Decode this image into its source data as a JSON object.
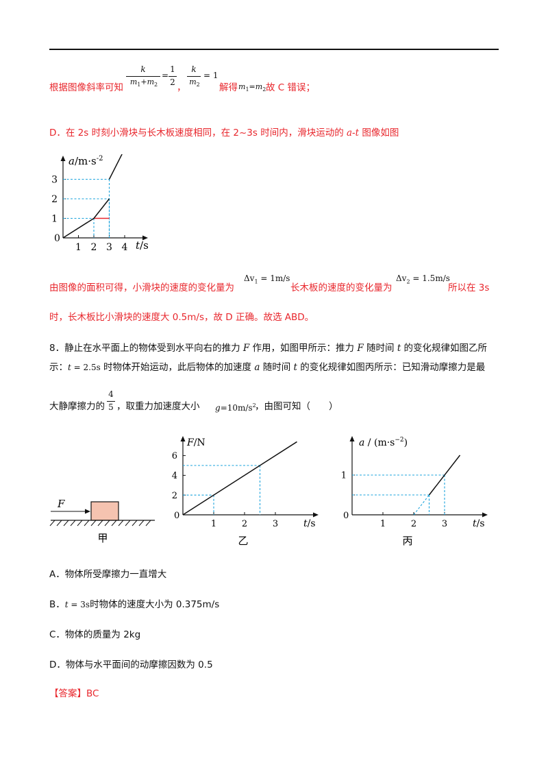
{
  "solution": {
    "line1": {
      "prefix": "根据图像斜率可知",
      "f1_num": "k",
      "f1_den_a": "m",
      "f1_den_a_sub": "1",
      "f1_plus": "+",
      "f1_den_b": "m",
      "f1_den_b_sub": "2",
      "eq1": "=",
      "half_num": "1",
      "half_den": "2",
      "comma": "，",
      "f2_num": "k",
      "f2_den": "m",
      "f2_den_sub": "2",
      "eq2": "= 1",
      "solve": "解得",
      "m1": "m",
      "m1_sub": "1",
      "eq3": "=",
      "m2": "m",
      "m2_sub": "2",
      "conclusion": "故 C 错误；"
    },
    "lineD": {
      "part1": "D．在 2s 时刻小滑块与长木板速度相同，在 2~3s 时间内，滑块运动的 ",
      "italic": "a-t",
      "part2": " 图像如图"
    },
    "area_line": {
      "part1": "由图像的面积可得，小滑块的速度的变化量为",
      "dv1_prefix": "Δv",
      "dv1_sub": "1",
      "dv1_value": " = 1m/s",
      "part2": "长木板的速度的变化量为",
      "dv2_prefix": "Δv",
      "dv2_sub": "2",
      "dv2_value": " = 1.5m/s",
      "part3": "所以在 3s"
    },
    "last_line": "时，长木板比小滑块的速度大 0.5m/s，故 D 正确。故选 ABD。"
  },
  "solution_chart": {
    "chart_data": {
      "type": "line",
      "ylabel_var": "a",
      "ylabel_unit": "/m·s",
      "ylabel_exp": "-2",
      "xlabel_var": "t",
      "xlabel_unit": "/s",
      "origin": "0",
      "x_ticks": [
        "1",
        "2",
        "3",
        "4"
      ],
      "y_ticks": [
        "1",
        "2",
        "3"
      ],
      "xlim": [
        0,
        4.5
      ],
      "ylim": [
        0,
        4.4
      ],
      "series": [
        {
          "values": [
            [
              0,
              0
            ],
            [
              2,
              1
            ],
            [
              3,
              2
            ]
          ]
        },
        {
          "values": [
            [
              3,
              3
            ],
            [
              3.9,
              4.4
            ]
          ]
        }
      ],
      "red_segment": [
        [
          2,
          1
        ],
        [
          3,
          1
        ]
      ],
      "guides": [
        [
          2,
          1
        ],
        [
          3,
          2
        ],
        [
          3,
          3
        ]
      ]
    }
  },
  "question": {
    "line1_a": "8．静止在水平面上的物体受到水平向右的推力 ",
    "F1": "F",
    "line1_b": " 作用，如图甲所示：推力 ",
    "F2": "F",
    "line1_c": " 随时间 ",
    "t1": "t",
    "line1_d": " 的变化规律如图乙所",
    "line2_a": "示：",
    "t_eq": "t",
    "t_val": " = 2.5s",
    "line2_b": " 时物体开始运动，此后物体的加速度 ",
    "a1": "a",
    "line2_c": " 随时间 ",
    "t2": "t",
    "line2_d": " 的变化规律如图丙所示：已知滑动摩擦力是最",
    "line3_a": "大静摩擦力的",
    "frac_num": "4",
    "frac_den": "5",
    "line3_b": "，取重力加速度大小",
    "g": "g",
    "g_val": "=10m/s",
    "g_exp": "2",
    "line3_c": "，由图可知（　　）"
  },
  "fig_jia": {
    "force_label": "F",
    "caption": "甲"
  },
  "fig_yi": {
    "caption": "乙",
    "chart_data": {
      "type": "line",
      "ylabel_var": "F",
      "ylabel_unit": "/N",
      "xlabel_var": "t",
      "xlabel_unit": "/s",
      "origin": "0",
      "x_ticks": [
        "1",
        "2",
        "3"
      ],
      "y_ticks": [
        "2",
        "4",
        "6"
      ],
      "xlim": [
        0,
        3.6
      ],
      "ylim": [
        0,
        7.5
      ],
      "series": [
        {
          "values": [
            [
              0,
              0
            ],
            [
              3.7,
              7.4
            ]
          ]
        }
      ],
      "guides": [
        [
          1,
          2
        ],
        [
          2.5,
          5
        ]
      ]
    }
  },
  "fig_bing": {
    "caption": "丙",
    "chart_data": {
      "type": "line",
      "ylabel_var": "a",
      "ylabel_unit": " / (m·s",
      "ylabel_exp": "−2",
      "ylabel_close": ")",
      "xlabel_var": "t",
      "xlabel_unit": "/s",
      "origin": "0",
      "x_ticks": [
        "1",
        "2",
        "3"
      ],
      "y_ticks": [
        "0.5",
        "1"
      ],
      "y_tick_labels": [
        "",
        "1"
      ],
      "xlim": [
        0,
        3.6
      ],
      "ylim": [
        0,
        1.6
      ],
      "series": [
        {
          "values": [
            [
              2.5,
              0.5
            ],
            [
              3.5,
              1.5
            ]
          ]
        }
      ],
      "dashed_segment": [
        [
          2,
          0
        ],
        [
          2.5,
          0.5
        ]
      ],
      "guides": [
        [
          2.5,
          0.5
        ],
        [
          3,
          1
        ]
      ]
    }
  },
  "options": {
    "A": "A．物体所受摩擦力一直增大",
    "B_label": "B．",
    "B_t": "t",
    "B_eq": " = 3s",
    "B_text": "时物体的速度大小为 0.375m/s",
    "C": "C．物体的质量为 2kg",
    "D": "D．物体与水平面间的动摩擦因数为 0.5"
  },
  "answer": {
    "label": "【答案】",
    "value": "BC"
  },
  "colors": {
    "red": "#e8262c",
    "dashed": "#1aa3dc",
    "block_fill": "#f5c3b0"
  }
}
